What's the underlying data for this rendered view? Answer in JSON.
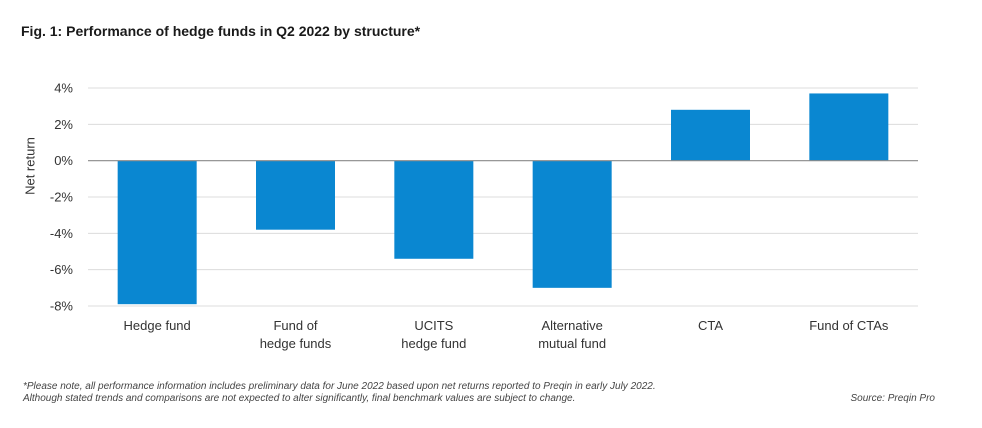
{
  "title": "Fig. 1: Performance of hedge funds in Q2 2022 by structure*",
  "note_line1": "*Please note, all performance information includes preliminary data for June 2022 based upon net returns reported to Preqin in early July 2022.",
  "note_line2": "Although stated trends and comparisons are not expected to alter significantly, final benchmark values are subject to change.",
  "source": "Source: Preqin Pro",
  "colors": {
    "bar": "#0a87d1",
    "grid": "#dcdcdc",
    "zero": "#8a8a8a"
  },
  "chart_data": {
    "type": "bar",
    "title": "Fig. 1: Performance of hedge funds in Q2 2022 by structure*",
    "xlabel": "",
    "ylabel": "Net return",
    "categories": [
      [
        "Hedge fund"
      ],
      [
        "Fund of",
        "hedge funds"
      ],
      [
        "UCITS",
        "hedge fund"
      ],
      [
        "Alternative",
        "mutual fund"
      ],
      [
        "CTA"
      ],
      [
        "Fund of CTAs"
      ]
    ],
    "values": [
      -7.9,
      -3.8,
      -5.4,
      -7.0,
      2.8,
      3.7
    ],
    "ylim": [
      -8,
      4
    ],
    "yticks": [
      4,
      2,
      0,
      -2,
      -4,
      -6,
      -8
    ],
    "ytick_labels": [
      "4%",
      "2%",
      "0%",
      "-2%",
      "-4%",
      "-6%",
      "-8%"
    ],
    "grid": true,
    "legend": "none"
  }
}
